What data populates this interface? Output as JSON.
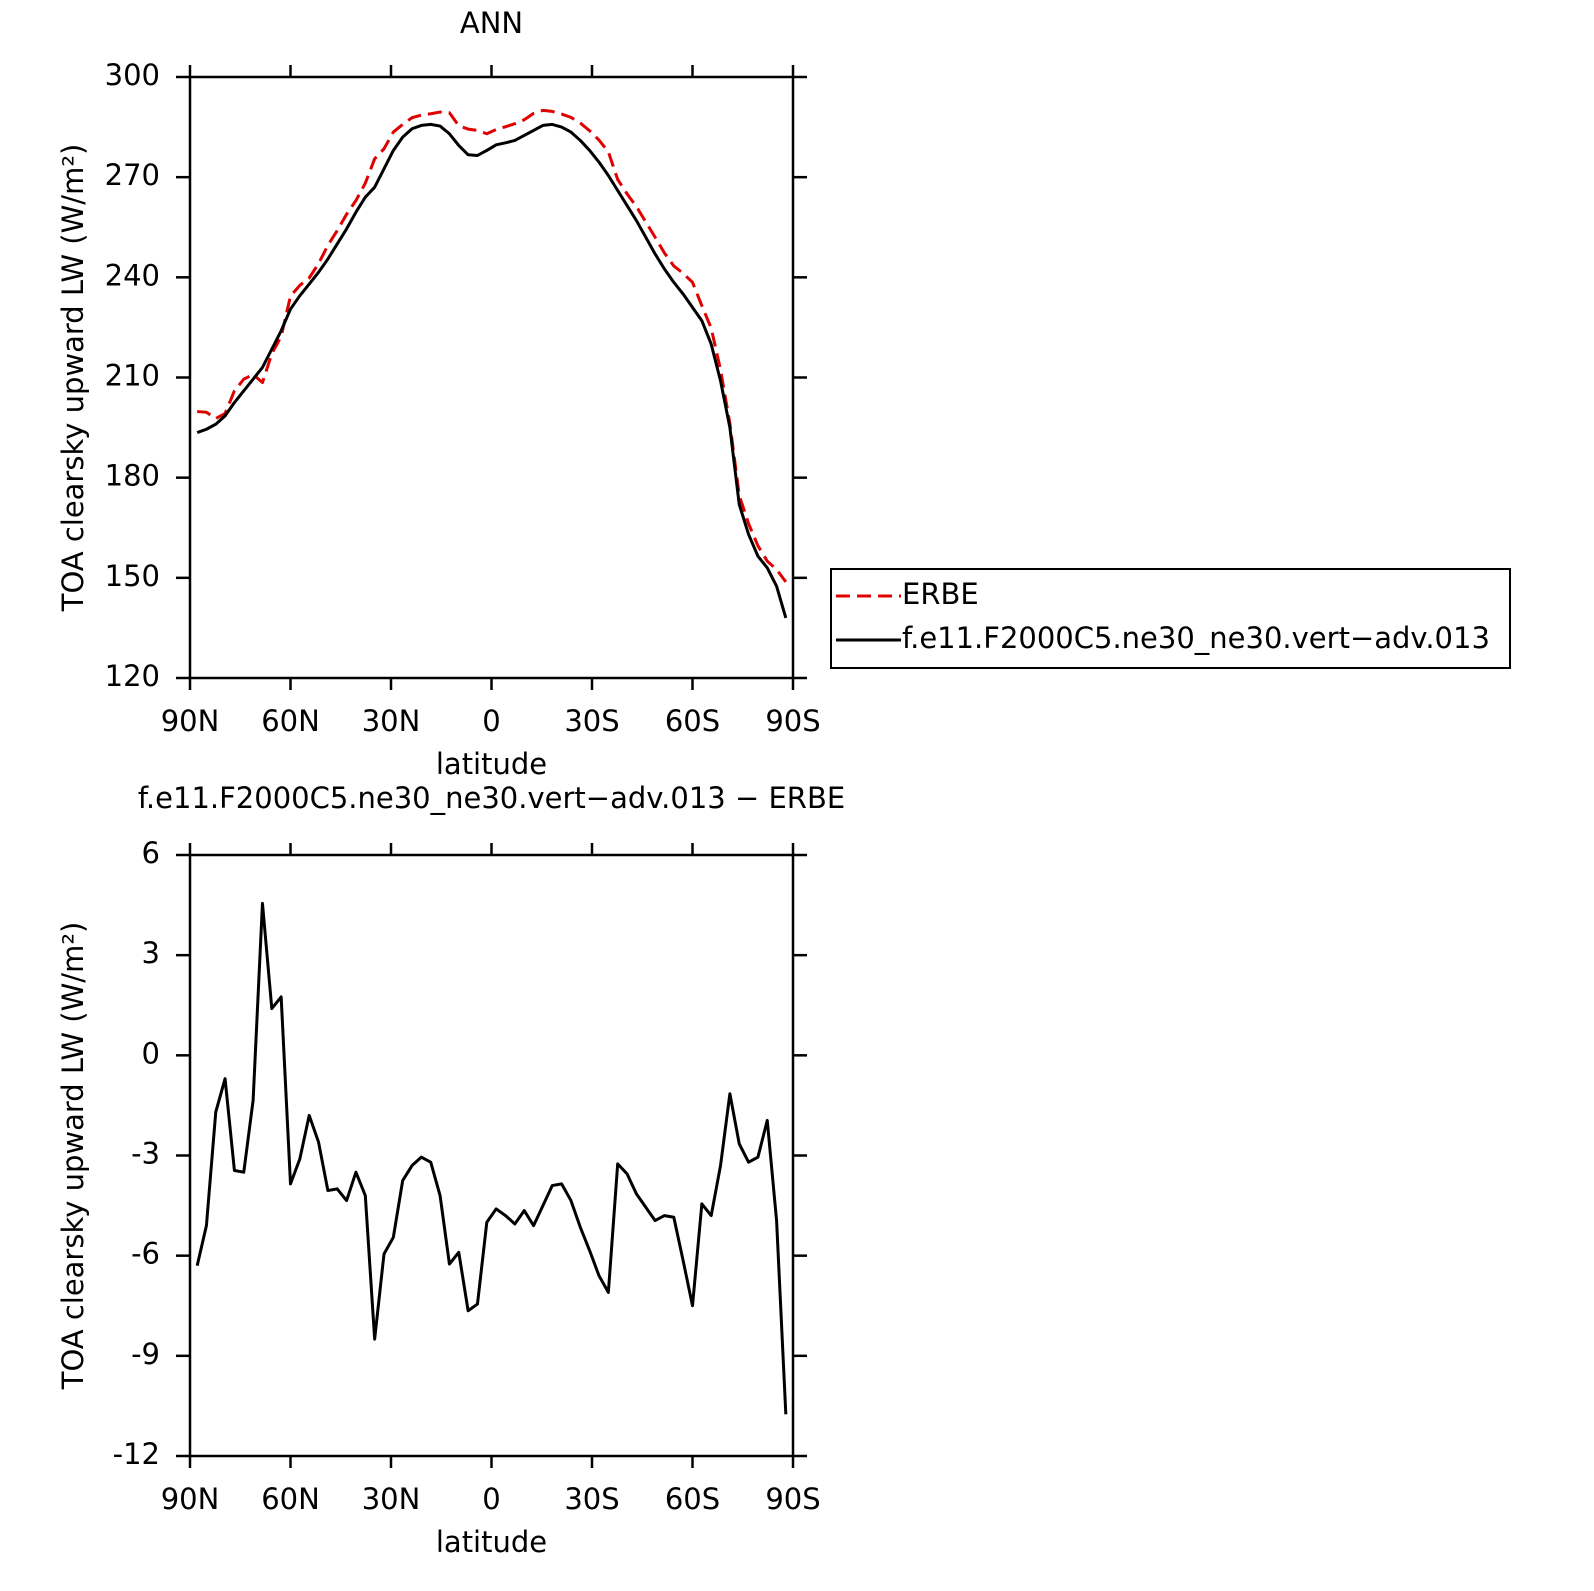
{
  "chart_data": [
    {
      "type": "line",
      "title": "ANN",
      "x_label": "latitude",
      "y_label": "TOA clearsky upward LW (W/m²)",
      "x": [
        87.86,
        85.1,
        82.31,
        79.53,
        76.74,
        73.95,
        71.16,
        68.37,
        65.58,
        62.79,
        60.0,
        57.21,
        54.42,
        51.63,
        48.84,
        46.05,
        43.26,
        40.47,
        37.67,
        34.88,
        32.09,
        29.3,
        26.51,
        23.72,
        20.93,
        18.14,
        15.35,
        12.56,
        9.77,
        6.98,
        4.19,
        1.4,
        -1.4,
        -4.19,
        -6.98,
        -9.77,
        -12.56,
        -15.35,
        -18.14,
        -20.93,
        -23.72,
        -26.51,
        -29.3,
        -32.09,
        -34.88,
        -37.67,
        -40.47,
        -43.26,
        -46.05,
        -48.84,
        -51.63,
        -54.42,
        -57.21,
        -60.0,
        -62.79,
        -65.58,
        -68.37,
        -71.16,
        -73.95,
        -76.74,
        -79.53,
        -82.31,
        -85.1,
        -87.86
      ],
      "series": [
        {
          "name": "ERBE",
          "color": "#e00000",
          "line_style": "dashed",
          "values": [
            199.8,
            199.6,
            197.7,
            199.2,
            206,
            209.5,
            210.9,
            208.5,
            217.1,
            222.3,
            234.4,
            237.6,
            239.8,
            244.1,
            249.6,
            254,
            258.9,
            263,
            268.2,
            275.5,
            278.5,
            283.5,
            285.8,
            287.8,
            288.6,
            289,
            289.5,
            289.3,
            285.4,
            284.4,
            284,
            283,
            284.3,
            285.1,
            286,
            287.2,
            289.1,
            290,
            289.7,
            288.9,
            287.9,
            286.2,
            283.9,
            281.1,
            277.6,
            269.3,
            265,
            261.2,
            256.6,
            252,
            247.3,
            243.4,
            241.2,
            238.5,
            231.5,
            224.8,
            212.3,
            196.2,
            174.7,
            166.2,
            159.6,
            155,
            152.5,
            148.8
          ]
        },
        {
          "name": "f.e11.F2000C5.ne30_ne30.vert−adv.013",
          "color": "#000000",
          "line_style": "solid",
          "values": [
            193.5,
            194.5,
            196,
            198.5,
            202.5,
            206,
            209.5,
            213,
            218.5,
            224,
            230.5,
            234.5,
            238,
            241.5,
            245.5,
            250,
            254.5,
            259.5,
            264,
            267,
            272.5,
            278,
            282,
            284.5,
            285.5,
            285.8,
            285.3,
            283,
            279.5,
            276.7,
            276.5,
            278,
            279.7,
            280.3,
            281,
            282.5,
            284,
            285.5,
            285.8,
            285,
            283.5,
            281,
            278,
            274.5,
            270.5,
            266,
            261.5,
            257,
            252,
            247,
            242.5,
            238.5,
            235,
            231,
            227,
            220,
            209,
            195,
            172,
            163,
            156.5,
            153,
            147.5,
            138
          ]
        }
      ],
      "xlim": [
        90,
        -90
      ],
      "ylim": [
        120,
        300
      ],
      "xticks": [
        {
          "value": 90,
          "label": "90N"
        },
        {
          "value": 60,
          "label": "60N"
        },
        {
          "value": 30,
          "label": "30N"
        },
        0,
        {
          "value": -30,
          "label": "30S"
        },
        {
          "value": -60,
          "label": "60S"
        },
        {
          "value": -90,
          "label": "90S"
        }
      ],
      "yticks": [
        120,
        150,
        180,
        210,
        240,
        270,
        300
      ],
      "legend": "right"
    },
    {
      "type": "line",
      "title": "f.e11.F2000C5.ne30_ne30.vert−adv.013 − ERBE",
      "x_label": "latitude",
      "y_label": "TOA clearsky upward LW (W/m²)",
      "x": [
        87.86,
        85.1,
        82.31,
        79.53,
        76.74,
        73.95,
        71.16,
        68.37,
        65.58,
        62.79,
        60.0,
        57.21,
        54.42,
        51.63,
        48.84,
        46.05,
        43.26,
        40.47,
        37.67,
        34.88,
        32.09,
        29.3,
        26.51,
        23.72,
        20.93,
        18.14,
        15.35,
        12.56,
        9.77,
        6.98,
        4.19,
        1.4,
        -1.4,
        -4.19,
        -6.98,
        -9.77,
        -12.56,
        -15.35,
        -18.14,
        -20.93,
        -23.72,
        -26.51,
        -29.3,
        -32.09,
        -34.88,
        -37.67,
        -40.47,
        -43.26,
        -46.05,
        -48.84,
        -51.63,
        -54.42,
        -57.21,
        -60.0,
        -62.79,
        -65.58,
        -68.37,
        -71.16,
        -73.95,
        -76.74,
        -79.53,
        -82.31,
        -85.1,
        -87.86
      ],
      "values": [
        -6.3,
        -5.1,
        -1.7,
        -0.7,
        -3.45,
        -3.5,
        -1.35,
        4.55,
        1.4,
        1.75,
        -3.85,
        -3.1,
        -1.8,
        -2.6,
        -4.05,
        -4.0,
        -4.35,
        -3.5,
        -4.2,
        -8.5,
        -5.95,
        -5.45,
        -3.75,
        -3.3,
        -3.05,
        -3.2,
        -4.2,
        -6.25,
        -5.9,
        -7.65,
        -7.45,
        -5.0,
        -4.6,
        -4.8,
        -5.05,
        -4.65,
        -5.1,
        -4.5,
        -3.9,
        -3.85,
        -4.35,
        -5.15,
        -5.85,
        -6.6,
        -7.1,
        -3.25,
        -3.55,
        -4.15,
        -4.55,
        -4.95,
        -4.8,
        -4.85,
        -6.15,
        -7.5,
        -4.45,
        -4.8,
        -3.3,
        -1.15,
        -2.65,
        -3.2,
        -3.05,
        -1.95,
        -4.95,
        -10.75
      ],
      "color": "#000000",
      "xlim": [
        90,
        -90
      ],
      "ylim": [
        -12,
        6
      ],
      "xticks": [
        {
          "value": 90,
          "label": "90N"
        },
        {
          "value": 60,
          "label": "60N"
        },
        {
          "value": 30,
          "label": "30N"
        },
        0,
        {
          "value": -30,
          "label": "30S"
        },
        {
          "value": -60,
          "label": "60S"
        },
        {
          "value": -90,
          "label": "90S"
        }
      ],
      "yticks": [
        -12,
        -9,
        -6,
        -3,
        0,
        3,
        6
      ]
    }
  ]
}
